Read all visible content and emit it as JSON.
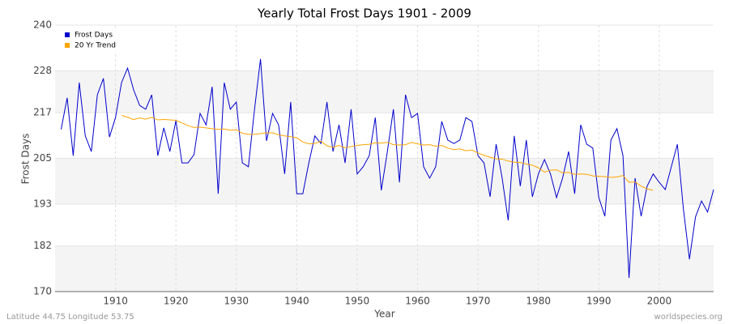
{
  "chart_data": {
    "type": "line",
    "title": "Yearly Total Frost Days 1901 - 2009",
    "xlabel": "Year",
    "ylabel": "Frost Days",
    "footer_left": "Latitude 44.75 Longitude 53.75",
    "footer_right": "worldspecies.org",
    "xlim": [
      1900,
      2009
    ],
    "ylim": [
      170,
      240
    ],
    "xticks": [
      1910,
      1920,
      1930,
      1940,
      1950,
      1960,
      1970,
      1980,
      1990,
      2000
    ],
    "yticks": [
      170,
      182,
      193,
      205,
      217,
      228,
      240
    ],
    "grid": true,
    "legend": "upper left",
    "x": [
      1901,
      1902,
      1903,
      1904,
      1905,
      1906,
      1907,
      1908,
      1909,
      1910,
      1911,
      1912,
      1913,
      1914,
      1915,
      1916,
      1917,
      1918,
      1919,
      1920,
      1921,
      1922,
      1923,
      1924,
      1925,
      1926,
      1927,
      1928,
      1929,
      1930,
      1931,
      1932,
      1933,
      1934,
      1935,
      1936,
      1937,
      1938,
      1939,
      1940,
      1941,
      1942,
      1943,
      1944,
      1945,
      1946,
      1947,
      1948,
      1949,
      1950,
      1951,
      1952,
      1953,
      1954,
      1955,
      1956,
      1957,
      1958,
      1959,
      1960,
      1961,
      1962,
      1963,
      1964,
      1965,
      1966,
      1967,
      1968,
      1969,
      1970,
      1971,
      1972,
      1973,
      1974,
      1975,
      1976,
      1977,
      1978,
      1979,
      1980,
      1981,
      1982,
      1983,
      1984,
      1985,
      1986,
      1987,
      1988,
      1989,
      1990,
      1991,
      1992,
      1993,
      1994,
      1995,
      1996,
      1997,
      1998,
      1999,
      2000,
      2001,
      2002,
      2003,
      2004,
      2005,
      2006,
      2007,
      2008,
      2009
    ],
    "series": [
      {
        "name": "Frost Days",
        "color": "#0000cc",
        "values": [
          212.6,
          220.9,
          205.7,
          224.9,
          210.9,
          206.8,
          221.7,
          226,
          210.6,
          215.7,
          224.9,
          228.7,
          223,
          218.9,
          217.9,
          221.7,
          205.7,
          213,
          206.8,
          214.9,
          203.8,
          203.8,
          206,
          216.8,
          213.8,
          223.8,
          195.7,
          224.9,
          217.9,
          219.8,
          203.8,
          202.8,
          217.7,
          231.1,
          209.6,
          216.8,
          213.8,
          200.9,
          219.8,
          195.7,
          195.7,
          203.8,
          210.9,
          208.9,
          219.8,
          206.8,
          213.8,
          203.8,
          217.9,
          200.9,
          202.8,
          205.7,
          215.7,
          196.6,
          206.8,
          217.9,
          198.7,
          221.7,
          215.7,
          216.8,
          202.8,
          199.8,
          202.8,
          214.7,
          209.8,
          208.9,
          209.8,
          215.7,
          214.7,
          205.7,
          203.8,
          194.9,
          208.7,
          199.8,
          188.7,
          210.9,
          197.7,
          209.8,
          194.9,
          200.9,
          204.7,
          200.9,
          194.7,
          199.8,
          206.8,
          195.7,
          213.8,
          208.7,
          207.7,
          194.7,
          189.8,
          209.8,
          212.8,
          205.7,
          173.6,
          199.8,
          189.8,
          197.7,
          200.9,
          198.7,
          196.8,
          202.8,
          208.7,
          191.7,
          178.5,
          189.6,
          193.8,
          190.9,
          196.8
        ]
      },
      {
        "name": "20 Yr Trend",
        "color": "#ffa500",
        "values": [
          null,
          null,
          null,
          null,
          null,
          null,
          null,
          null,
          null,
          null,
          216.3,
          215.8,
          215.2,
          215.6,
          215.3,
          215.8,
          215.1,
          215.2,
          215.1,
          215.0,
          214.3,
          213.6,
          213.1,
          213.2,
          213.0,
          212.8,
          212.6,
          212.7,
          212.4,
          212.5,
          211.6,
          211.3,
          211.3,
          211.5,
          211.7,
          211.7,
          211.2,
          210.9,
          210.7,
          210.4,
          209.3,
          208.8,
          208.9,
          209.5,
          208.3,
          207.9,
          208.4,
          207.8,
          208.1,
          208.4,
          208.6,
          208.7,
          209.1,
          209.0,
          209.2,
          208.6,
          208.5,
          208.6,
          209.2,
          208.8,
          208.5,
          208.6,
          208.2,
          208.4,
          207.7,
          207.3,
          207.5,
          207.0,
          207.2,
          206.4,
          205.8,
          205.3,
          204.9,
          204.8,
          204.3,
          204.0,
          203.9,
          203.5,
          203.2,
          202.5,
          201.4,
          201.9,
          202.0,
          201.2,
          201.3,
          200.8,
          200.9,
          200.8,
          200.4,
          200.3,
          200.2,
          200.0,
          200.1,
          200.5,
          198.7,
          198.8,
          197.7,
          197.0,
          196.6,
          null,
          null,
          null,
          null,
          null,
          null,
          null,
          null,
          null,
          null
        ]
      }
    ]
  }
}
